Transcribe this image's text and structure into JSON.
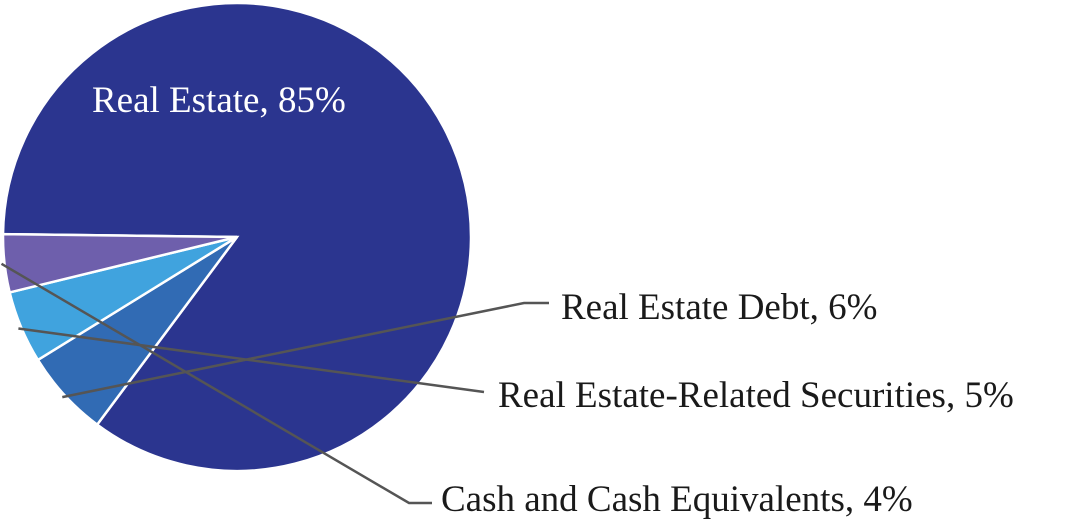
{
  "chart_data": {
    "type": "pie",
    "slices": [
      {
        "label": "Real Estate, 85%",
        "value": 85,
        "color": "#2b358f"
      },
      {
        "label": "Real Estate Debt, 6%",
        "value": 6,
        "color": "#316bb4"
      },
      {
        "label": "Real Estate-Related Securities, 5%",
        "value": 5,
        "color": "#40a3de"
      },
      {
        "label": "Cash and Cash Equivalents, 4%",
        "value": 4,
        "color": "#6e5fac"
      }
    ]
  }
}
